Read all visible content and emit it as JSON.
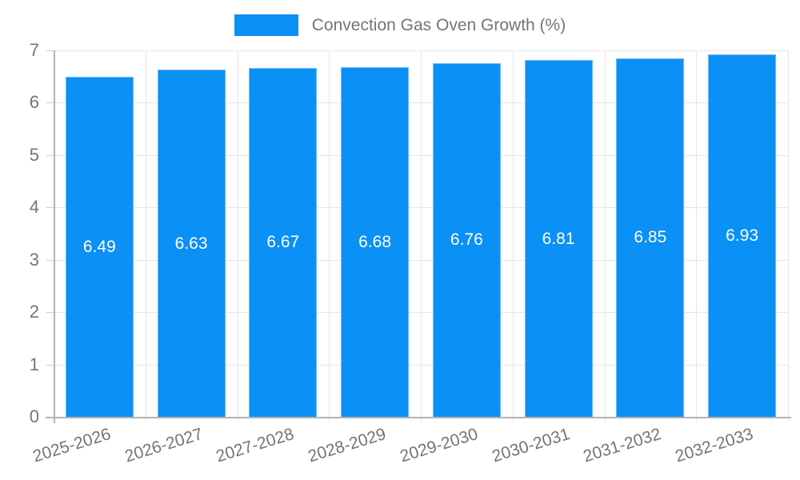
{
  "chart_data": {
    "type": "bar",
    "title": "Convection Gas Oven Growth (%)",
    "legend": {
      "label": "Convection Gas Oven Growth (%)",
      "position": "top-center"
    },
    "categories": [
      "2025-2026",
      "2026-2027",
      "2027-2028",
      "2028-2029",
      "2029-2030",
      "2030-2031",
      "2031-2032",
      "2032-2033"
    ],
    "values": [
      6.49,
      6.63,
      6.67,
      6.68,
      6.76,
      6.81,
      6.85,
      6.93
    ],
    "xlabel": "",
    "ylabel": "",
    "ylim": [
      0,
      7
    ],
    "yticks": [
      0,
      1,
      2,
      3,
      4,
      5,
      6,
      7
    ],
    "grid": true,
    "style": {
      "bar_color": "#0b90f5",
      "bar_border_color": "#6cb8f8",
      "bar_label_color": "#ffffff",
      "axis_text_color": "#757575",
      "grid_color": "#e6e6e6",
      "axis_line_color": "#b3b3b3",
      "tick_color": "#cccccc",
      "x_label_rotation_deg": -17,
      "bar_width_fraction": 0.74
    }
  }
}
